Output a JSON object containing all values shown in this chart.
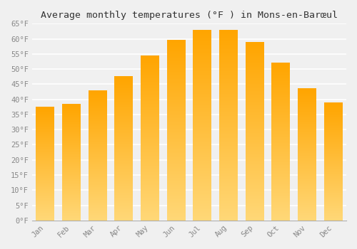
{
  "title": "Average monthly temperatures (°F ) in Mons-en-Barœul",
  "months": [
    "Jan",
    "Feb",
    "Mar",
    "Apr",
    "May",
    "Jun",
    "Jul",
    "Aug",
    "Sep",
    "Oct",
    "Nov",
    "Dec"
  ],
  "values": [
    37.5,
    38.5,
    43.0,
    47.5,
    54.5,
    59.5,
    63.0,
    63.0,
    59.0,
    52.0,
    43.5,
    39.0
  ],
  "bar_color_top": "#FFA500",
  "bar_color_bottom": "#FFD878",
  "ylim": [
    0,
    65
  ],
  "yticks": [
    0,
    5,
    10,
    15,
    20,
    25,
    30,
    35,
    40,
    45,
    50,
    55,
    60,
    65
  ],
  "background_color": "#f0f0f0",
  "grid_color": "#ffffff",
  "title_fontsize": 9.5,
  "tick_fontsize": 7.5,
  "tick_color": "#888888",
  "font_family": "monospace"
}
